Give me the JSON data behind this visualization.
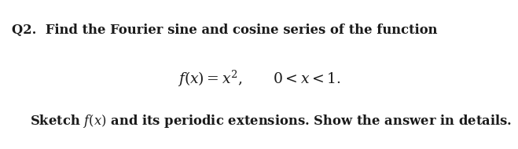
{
  "background_color": "#ffffff",
  "line1": "Q2.  Find the Fourier sine and cosine series of the function",
  "line2_math": "$\\mathbf{\\mathit{f}(\\mathit{x}) = \\mathit{x}^2}$,     $0 < \\mathit{x} < 1.$",
  "line3": "Sketch $\\mathit{f}(\\mathit{x})$ and its periodic extensions. Show the answer in details.",
  "fig_width": 6.59,
  "fig_height": 1.9,
  "dpi": 100,
  "text_color": "#1a1a1a"
}
